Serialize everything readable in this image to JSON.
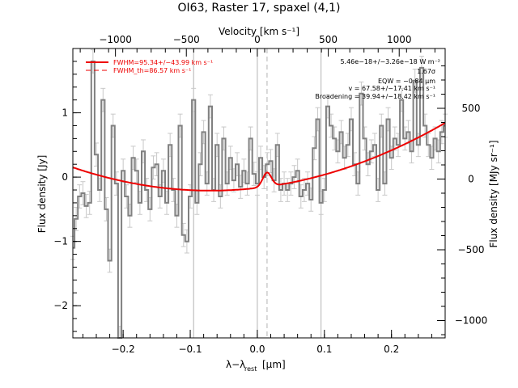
{
  "chart_data": {
    "type": "line",
    "title": "OI63, Raster 17, spaxel (4,1)",
    "xlabel_main": "λ−λ",
    "xlabel_sub": "rest",
    "xlabel_unit": "[μm]",
    "ylabel_left": "Flux density [Jy]",
    "ylabel_right": "Flux density [MJy sr⁻¹]",
    "top_axis_label": "Velocity [km s⁻¹]",
    "xlim": [
      -0.275,
      0.28
    ],
    "ylim": [
      -2.5,
      2.0
    ],
    "x_ticks": [
      -0.2,
      -0.1,
      0.0,
      0.1,
      0.2
    ],
    "x_tick_labels": [
      "−0.2",
      "−0.1",
      "0.0",
      "0.1",
      "0.2"
    ],
    "y_ticks": [
      -2,
      -1,
      0,
      1
    ],
    "y_tick_labels": [
      "−2",
      "−1",
      "0",
      "1"
    ],
    "right_ticks": [
      {
        "y": -2.23,
        "label": "−1000"
      },
      {
        "y": -1.13,
        "label": "−500"
      },
      {
        "y": -0.03,
        "label": "0"
      },
      {
        "y": 1.07,
        "label": "500"
      }
    ],
    "top_ticks": [
      {
        "x": -0.2115,
        "label": "−1000"
      },
      {
        "x": -0.1058,
        "label": "−500"
      },
      {
        "x": 0.0,
        "label": "0"
      },
      {
        "x": 0.1058,
        "label": "500"
      },
      {
        "x": 0.2115,
        "label": "1000"
      }
    ],
    "vertical_lines": [
      {
        "x": -0.095,
        "style": "solid",
        "color": "#b3b3b3"
      },
      {
        "x": 0.0,
        "style": "solid",
        "color": "#b3b3b3"
      },
      {
        "x": 0.0145,
        "style": "dashed",
        "color": "#b3b3b3"
      },
      {
        "x": 0.095,
        "style": "solid",
        "color": "#b3b3b3"
      }
    ],
    "legend": [
      {
        "label": "FWHM=95.34+/−43.99 km s⁻¹",
        "style": "solid",
        "color": "#ee0000"
      },
      {
        "label": "FWHM_th=86.57 km s⁻¹",
        "style": "dashed",
        "color": "#ee0000"
      }
    ],
    "annotations": [
      "5.46e−18+/−3.26e−18 W m⁻²",
      "1.67σ",
      "EQW = −0.84 μm",
      "v = 67.58+/−17.41 km s⁻¹",
      "Broadening = 39.94+/−18.42 km s⁻¹"
    ],
    "spectrum_color": "#808080",
    "fit_color": "#ee0000",
    "error_color": "#c8c8c8",
    "series": [
      {
        "name": "data",
        "x": [
          -0.275,
          -0.27,
          -0.265,
          -0.26,
          -0.255,
          -0.25,
          -0.245,
          -0.24,
          -0.235,
          -0.23,
          -0.225,
          -0.22,
          -0.215,
          -0.21,
          -0.205,
          -0.2,
          -0.195,
          -0.19,
          -0.185,
          -0.18,
          -0.175,
          -0.17,
          -0.165,
          -0.16,
          -0.155,
          -0.15,
          -0.145,
          -0.14,
          -0.135,
          -0.13,
          -0.125,
          -0.12,
          -0.115,
          -0.11,
          -0.105,
          -0.1,
          -0.095,
          -0.09,
          -0.085,
          -0.08,
          -0.075,
          -0.07,
          -0.065,
          -0.06,
          -0.055,
          -0.05,
          -0.045,
          -0.04,
          -0.035,
          -0.03,
          -0.025,
          -0.02,
          -0.015,
          -0.01,
          -0.005,
          0.0,
          0.005,
          0.01,
          0.015,
          0.02,
          0.025,
          0.03,
          0.035,
          0.04,
          0.045,
          0.05,
          0.055,
          0.06,
          0.065,
          0.07,
          0.075,
          0.08,
          0.085,
          0.09,
          0.095,
          0.1,
          0.105,
          0.11,
          0.115,
          0.12,
          0.125,
          0.13,
          0.135,
          0.14,
          0.145,
          0.15,
          0.155,
          0.16,
          0.165,
          0.17,
          0.175,
          0.18,
          0.185,
          0.19,
          0.195,
          0.2,
          0.205,
          0.21,
          0.215,
          0.22,
          0.225,
          0.23,
          0.235,
          0.24,
          0.245,
          0.25,
          0.255,
          0.26,
          0.265,
          0.27,
          0.275,
          0.28
        ],
        "y": [
          -1.1,
          -0.65,
          -0.3,
          -0.25,
          -0.45,
          -0.4,
          1.8,
          0.35,
          -0.2,
          1.2,
          -0.5,
          -1.3,
          0.8,
          -0.1,
          -2.5,
          0.1,
          -0.3,
          -0.6,
          0.3,
          0.1,
          -0.4,
          0.4,
          -0.2,
          -0.5,
          0.15,
          0.2,
          -0.3,
          0.1,
          -0.4,
          0.5,
          -0.2,
          -0.6,
          0.8,
          -0.9,
          -1.0,
          -0.3,
          1.2,
          -0.4,
          0.2,
          0.7,
          -0.1,
          1.1,
          -0.2,
          0.5,
          -0.3,
          0.6,
          -0.1,
          0.3,
          -0.05,
          0.2,
          -0.15,
          0.1,
          -0.1,
          0.6,
          0.05,
          -0.1,
          0.3,
          0.0,
          0.2,
          0.25,
          -0.05,
          0.5,
          -0.2,
          -0.1,
          -0.2,
          -0.1,
          0.0,
          0.1,
          -0.3,
          -0.2,
          -0.1,
          -0.35,
          0.45,
          0.9,
          -0.4,
          -0.2,
          1.1,
          0.8,
          0.6,
          0.4,
          0.7,
          0.3,
          0.5,
          0.9,
          0.2,
          -0.1,
          1.3,
          0.6,
          0.2,
          0.4,
          0.5,
          -0.2,
          0.8,
          -0.1,
          0.9,
          0.3,
          0.6,
          0.5,
          1.2,
          0.6,
          0.7,
          0.4,
          1.5,
          0.5,
          1.7,
          0.8,
          0.5,
          0.3,
          0.6,
          0.4,
          0.7,
          0.8
        ],
        "yerr": 0.18
      },
      {
        "name": "fit",
        "baseline_quadratic": {
          "center": -0.07,
          "min": -0.21,
          "curv": 8.6
        },
        "gaussian": {
          "center": 0.0145,
          "amp": 0.22,
          "sigma": 0.0065
        }
      }
    ]
  }
}
